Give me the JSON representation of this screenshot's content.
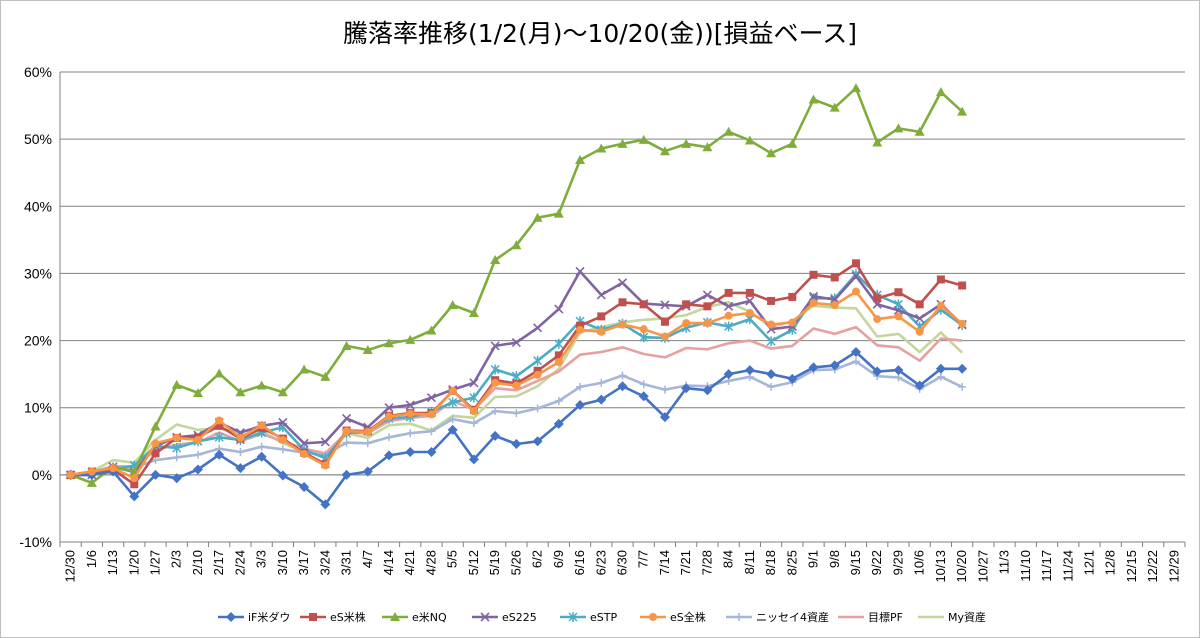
{
  "chart_data": {
    "type": "line",
    "title": "騰落率推移(1/2(月)〜10/20(金))[損益ベース]",
    "ylim": [
      -10,
      60
    ],
    "yticks": [
      -10,
      0,
      10,
      20,
      30,
      40,
      50,
      60
    ],
    "ytick_labels": [
      "-10%",
      "0%",
      "10%",
      "20%",
      "30%",
      "40%",
      "50%",
      "60%"
    ],
    "grid": "horizontal",
    "legend": "bottom",
    "x_labels": [
      "12/30",
      "1/6",
      "1/13",
      "1/20",
      "1/27",
      "2/3",
      "2/10",
      "2/17",
      "2/24",
      "3/3",
      "3/10",
      "3/17",
      "3/24",
      "3/31",
      "4/7",
      "4/14",
      "4/21",
      "4/28",
      "5/5",
      "5/12",
      "5/19",
      "5/26",
      "6/2",
      "6/9",
      "6/16",
      "6/23",
      "6/30",
      "7/7",
      "7/14",
      "7/21",
      "7/28",
      "8/4",
      "8/11",
      "8/18",
      "8/25",
      "9/1",
      "9/8",
      "9/15",
      "9/22",
      "9/29",
      "10/6",
      "10/13",
      "10/20",
      "10/27",
      "11/3",
      "11/10",
      "11/17",
      "11/24",
      "12/1",
      "12/8",
      "12/15",
      "12/22",
      "12/29"
    ],
    "x_data_start": 0,
    "series": [
      {
        "name": "iF米ダウ",
        "color": "#4472c4",
        "marker": "diamond",
        "z": 8,
        "values": [
          0,
          0,
          0.5,
          -3.2,
          0,
          -0.5,
          0.8,
          3,
          1,
          2.7,
          -0.1,
          -1.8,
          -4.4,
          0,
          0.5,
          2.9,
          3.4,
          3.4,
          6.7,
          2.3,
          5.8,
          4.6,
          5,
          7.6,
          10.4,
          11.2,
          13.2,
          11.7,
          8.6,
          12.9,
          12.6,
          15,
          15.6,
          15,
          14.3,
          16,
          16.3,
          18.3,
          15.4,
          15.6,
          13.3,
          15.8,
          15.8
        ]
      },
      {
        "name": "eS米株",
        "color": "#c0504d",
        "marker": "square",
        "z": 7,
        "values": [
          0,
          0.5,
          0.8,
          -1.4,
          3.2,
          5.5,
          5.6,
          7.3,
          5.4,
          7,
          5.4,
          3.3,
          1.6,
          6.6,
          6.5,
          8.8,
          9.2,
          9.2,
          12.5,
          9.7,
          14.1,
          13.6,
          15.5,
          17.8,
          22.2,
          23.6,
          25.7,
          25.4,
          22.8,
          25.4,
          25.1,
          27.1,
          27.1,
          25.9,
          26.5,
          29.8,
          29.4,
          31.5,
          26.3,
          27.2,
          25.4,
          29.1,
          28.2
        ]
      },
      {
        "name": "e米NQ",
        "color": "#7fad3c",
        "marker": "triangle",
        "z": 6,
        "values": [
          0,
          -1.2,
          1.2,
          0.5,
          7.2,
          13.4,
          12.2,
          15.1,
          12.3,
          13.3,
          12.3,
          15.7,
          14.6,
          19.2,
          18.6,
          19.6,
          20.1,
          21.5,
          25.3,
          24.1,
          32,
          34.2,
          38.3,
          38.9,
          46.9,
          48.6,
          49.3,
          49.9,
          48.2,
          49.3,
          48.8,
          51.1,
          49.8,
          47.9,
          49.3,
          55.9,
          54.7,
          57.6,
          49.5,
          51.6,
          51.1,
          57,
          54.1
        ]
      },
      {
        "name": "eS225",
        "color": "#8064a2",
        "marker": "x",
        "z": 5,
        "values": [
          0,
          0,
          1.2,
          0.4,
          4.3,
          5.6,
          5.9,
          7.8,
          6.3,
          7.3,
          7.8,
          4.7,
          4.9,
          8.4,
          7.1,
          10,
          10.4,
          11.5,
          12.7,
          13.7,
          19.2,
          19.7,
          21.9,
          24.7,
          30.3,
          26.8,
          28.6,
          25.5,
          25.3,
          25.1,
          26.8,
          25.1,
          25.9,
          21.7,
          22.1,
          26.6,
          26.1,
          29.6,
          25.4,
          24.5,
          23.3,
          25.4,
          22.4
        ]
      },
      {
        "name": "eSTP",
        "color": "#4bacc6",
        "marker": "star",
        "z": 4,
        "values": [
          0,
          0,
          0.8,
          1.4,
          4.3,
          4,
          5,
          5.6,
          5.2,
          6.3,
          7.1,
          3.7,
          2.5,
          6.2,
          6.5,
          8.4,
          8.6,
          9.4,
          10.8,
          11.5,
          15.7,
          14.7,
          17,
          19.5,
          22.9,
          21.6,
          22.5,
          20.5,
          20.4,
          21.9,
          22.7,
          22.1,
          23.2,
          19.9,
          21.6,
          26.3,
          26.3,
          29.9,
          26.8,
          25.4,
          22.1,
          24.6,
          22.3
        ]
      },
      {
        "name": "eS全株",
        "color": "#f79646",
        "marker": "circle",
        "z": 9,
        "values": [
          0,
          0.5,
          1,
          -0.5,
          4.7,
          5.5,
          5.2,
          8.1,
          5.5,
          7.4,
          5.2,
          3.1,
          1.4,
          6.5,
          6.4,
          8.7,
          9.1,
          9,
          12.5,
          9.5,
          13.7,
          13.3,
          14.9,
          16.8,
          21.6,
          21.3,
          22.4,
          21.7,
          20.6,
          22.6,
          22.6,
          23.7,
          24.1,
          22.4,
          22.7,
          25.6,
          25.3,
          27.3,
          23.2,
          23.6,
          21.3,
          25.2,
          22.5
        ]
      },
      {
        "name": "ニッセイ4資産",
        "color": "#a5b6d9",
        "marker": "plus",
        "z": 3,
        "values": [
          0,
          0.3,
          1.1,
          1.1,
          2.2,
          2.6,
          3,
          3.9,
          3.4,
          4.2,
          3.8,
          3.3,
          3,
          4.8,
          4.7,
          5.6,
          6.2,
          6.5,
          8.3,
          7.7,
          9.5,
          9.2,
          9.9,
          11,
          13.1,
          13.7,
          14.8,
          13.5,
          12.7,
          13.3,
          13.2,
          14,
          14.6,
          13.1,
          13.8,
          15.6,
          15.7,
          16.9,
          14.7,
          14.5,
          12.8,
          14.6,
          13.1
        ]
      },
      {
        "name": "目標PF",
        "color": "#e6a0a0",
        "marker": "none",
        "z": 2,
        "values": [
          0,
          0.4,
          1.3,
          1.2,
          3.7,
          4.5,
          4.8,
          6.3,
          5,
          6.1,
          5,
          3.9,
          3.2,
          6.3,
          6.2,
          8,
          8.5,
          8.8,
          11,
          9.7,
          12.9,
          12.6,
          14,
          15.4,
          17.9,
          18.3,
          19,
          18,
          17.5,
          18.9,
          18.7,
          19.6,
          20,
          18.8,
          19.2,
          21.8,
          21,
          22,
          19.3,
          19,
          17,
          20.3,
          20
        ]
      },
      {
        "name": "My資産",
        "color": "#c3d69b",
        "marker": "none",
        "z": 1,
        "values": [
          0,
          0.5,
          2.2,
          1.8,
          5.2,
          7.5,
          6.7,
          7,
          5.9,
          6.5,
          4.7,
          3.5,
          2.8,
          6.2,
          5.5,
          7.4,
          7.6,
          6.6,
          8.8,
          8.5,
          11.6,
          11.7,
          13.2,
          15.8,
          21.2,
          22,
          22.7,
          23.1,
          23.3,
          23.8,
          25,
          25.7,
          24.3,
          22,
          22.9,
          25.2,
          24.9,
          24.8,
          20.6,
          21,
          18.3,
          21.2,
          18.2
        ]
      }
    ]
  }
}
